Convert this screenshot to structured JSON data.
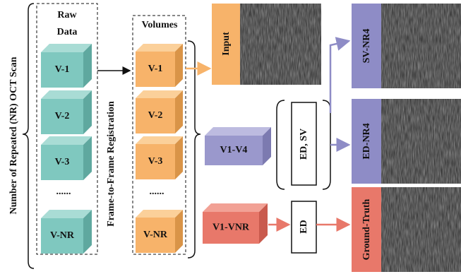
{
  "left_label": "Number of Repeated (NR) OCT Scan",
  "raw_data": {
    "title": [
      "Raw",
      "Data"
    ],
    "items": [
      "V-1",
      "V-2",
      "V-3",
      "......",
      "V-NR"
    ]
  },
  "registration_label": "Frame-to-Frame Registration",
  "volumes": {
    "title": "Volumes",
    "items": [
      "V-1",
      "V-2",
      "V-3",
      "......",
      "V-NR"
    ]
  },
  "input_label": "Input",
  "subset_label": "V1-V4",
  "full_label": "V1-VNR",
  "operations": [
    "ED, SV",
    "ED"
  ],
  "outputs": [
    "SV-NR4",
    "ED-NR4",
    "Ground-Truth"
  ]
}
